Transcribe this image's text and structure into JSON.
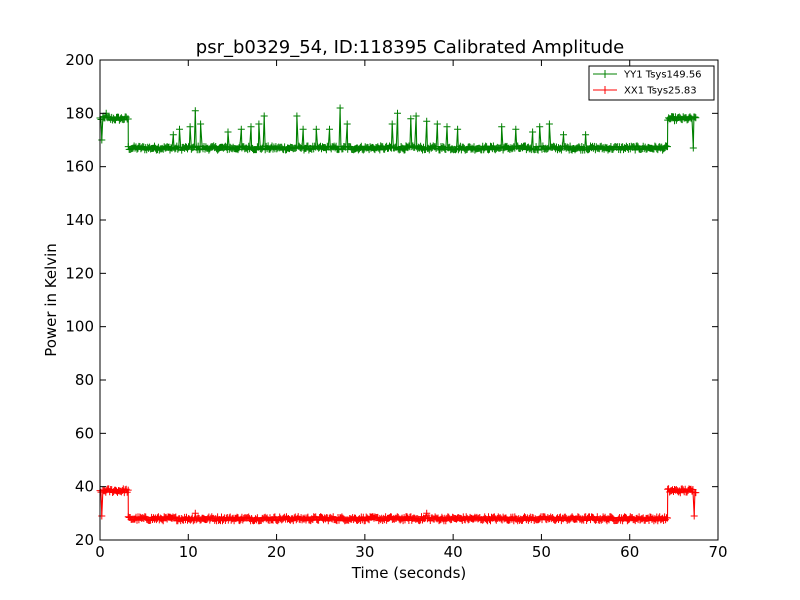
{
  "chart_data": {
    "type": "line",
    "title": "psr_b0329_54, ID:118395 Calibrated Amplitude",
    "xlabel": "Time (seconds)",
    "ylabel": "Power in Kelvin",
    "xlim": [
      0,
      70
    ],
    "ylim": [
      20,
      200
    ],
    "xticks": [
      "0",
      "10",
      "20",
      "30",
      "40",
      "50",
      "60",
      "70"
    ],
    "yticks": [
      "20",
      "40",
      "60",
      "80",
      "100",
      "120",
      "140",
      "160",
      "180",
      "200"
    ],
    "grid": false,
    "legend_position": "top-right",
    "series": [
      {
        "name": "YY1 Tsys149.56",
        "color": "#008000",
        "marker": "+",
        "segments": [
          {
            "x_start": 0.0,
            "x_end": 3.2,
            "level": 178
          },
          {
            "x_start": 3.2,
            "x_end": 6.5,
            "level": 167
          },
          {
            "x_start": 6.5,
            "x_end": 61.2,
            "level": 167
          },
          {
            "x_start": 61.2,
            "x_end": 64.3,
            "level": 167
          },
          {
            "x_start": 64.3,
            "x_end": 67.5,
            "level": 178
          }
        ],
        "spikes": [
          {
            "x": 0.2,
            "y": 170
          },
          {
            "x": 0.7,
            "y": 180
          },
          {
            "x": 8.3,
            "y": 172
          },
          {
            "x": 9.0,
            "y": 174
          },
          {
            "x": 10.2,
            "y": 175
          },
          {
            "x": 10.8,
            "y": 181
          },
          {
            "x": 11.4,
            "y": 176
          },
          {
            "x": 14.5,
            "y": 173
          },
          {
            "x": 16.0,
            "y": 174
          },
          {
            "x": 17.1,
            "y": 175
          },
          {
            "x": 18.0,
            "y": 176
          },
          {
            "x": 18.6,
            "y": 179
          },
          {
            "x": 22.3,
            "y": 179
          },
          {
            "x": 23.0,
            "y": 174
          },
          {
            "x": 24.5,
            "y": 174
          },
          {
            "x": 26.0,
            "y": 174
          },
          {
            "x": 27.2,
            "y": 182
          },
          {
            "x": 28.0,
            "y": 176
          },
          {
            "x": 33.1,
            "y": 176
          },
          {
            "x": 33.7,
            "y": 180
          },
          {
            "x": 35.2,
            "y": 178
          },
          {
            "x": 35.8,
            "y": 179
          },
          {
            "x": 37.0,
            "y": 177
          },
          {
            "x": 38.2,
            "y": 176
          },
          {
            "x": 39.3,
            "y": 175
          },
          {
            "x": 40.5,
            "y": 174
          },
          {
            "x": 45.5,
            "y": 175
          },
          {
            "x": 47.1,
            "y": 174
          },
          {
            "x": 49.0,
            "y": 173
          },
          {
            "x": 49.8,
            "y": 175
          },
          {
            "x": 50.9,
            "y": 176
          },
          {
            "x": 52.5,
            "y": 172
          },
          {
            "x": 55.0,
            "y": 172
          },
          {
            "x": 67.2,
            "y": 167
          }
        ]
      },
      {
        "name": "XX1 Tsys25.83",
        "color": "#ff0000",
        "marker": "+",
        "segments": [
          {
            "x_start": 0.0,
            "x_end": 3.2,
            "level": 38.5
          },
          {
            "x_start": 3.2,
            "x_end": 6.5,
            "level": 28
          },
          {
            "x_start": 6.5,
            "x_end": 61.2,
            "level": 28
          },
          {
            "x_start": 61.2,
            "x_end": 64.3,
            "level": 28
          },
          {
            "x_start": 64.3,
            "x_end": 67.5,
            "level": 38.5
          }
        ],
        "spikes": [
          {
            "x": 0.2,
            "y": 29
          },
          {
            "x": 10.8,
            "y": 30
          },
          {
            "x": 37.0,
            "y": 30
          },
          {
            "x": 67.3,
            "y": 29
          }
        ]
      }
    ]
  }
}
